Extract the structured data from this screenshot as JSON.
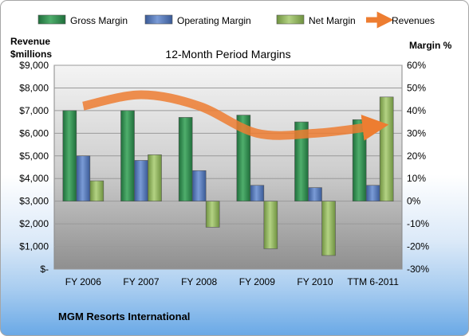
{
  "chart_data": {
    "type": "bar",
    "title": "12-Month Period Margins",
    "footer": "MGM Resorts International",
    "categories": [
      "FY 2006",
      "FY 2007",
      "FY 2008",
      "FY 2009",
      "FY 2010",
      "TTM 6-2011"
    ],
    "series": [
      {
        "name": "Gross Margin",
        "axis": "right",
        "color": "#2e8b4e",
        "values": [
          40,
          40,
          37,
          38,
          35,
          36
        ]
      },
      {
        "name": "Operating Margin",
        "axis": "right",
        "color": "#4f74b8",
        "values": [
          20,
          18,
          13.5,
          7,
          6,
          7
        ]
      },
      {
        "name": "Net Margin",
        "axis": "right",
        "color": "#8fb25a",
        "values": [
          9,
          20.5,
          -11.5,
          -21,
          -24,
          46
        ]
      },
      {
        "name": "Revenues",
        "axis": "left",
        "type": "line",
        "color": "#ed7d31",
        "values": [
          7200,
          7700,
          7200,
          6000,
          6000,
          6300
        ]
      }
    ],
    "left_axis": {
      "title_lines": [
        "Revenue",
        "$millions"
      ],
      "ylim": [
        0,
        9000
      ],
      "ticks": [
        0,
        1000,
        2000,
        3000,
        4000,
        5000,
        6000,
        7000,
        8000,
        9000
      ],
      "tick_labels": [
        "$-",
        "$1,000",
        "$2,000",
        "$3,000",
        "$4,000",
        "$5,000",
        "$6,000",
        "$7,000",
        "$8,000",
        "$9,000"
      ]
    },
    "right_axis": {
      "title": "Margin %",
      "ylim": [
        -30,
        60
      ],
      "ticks": [
        -30,
        -20,
        -10,
        0,
        10,
        20,
        30,
        40,
        50,
        60
      ],
      "tick_labels": [
        "-30%",
        "-20%",
        "-10%",
        "0%",
        "10%",
        "20%",
        "30%",
        "40%",
        "50%",
        "60%"
      ]
    },
    "grid": true,
    "legend": "top"
  }
}
